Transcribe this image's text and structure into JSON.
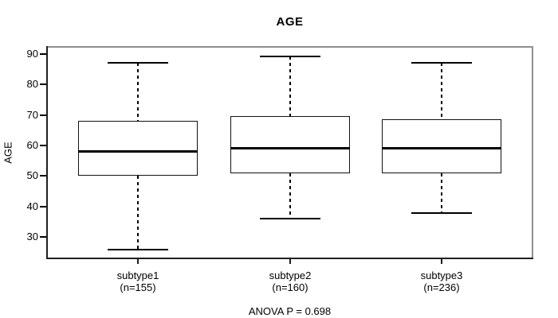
{
  "title": "AGE",
  "footer": "ANOVA P = 0.698",
  "colors": {
    "box_stroke": "#000000",
    "median": "#000000",
    "whisker": "#000000",
    "frame_gray": "#8f8f8f",
    "axis_black": "#1f1f1f",
    "text": "#000000",
    "background": "#ffffff"
  },
  "chart_data": {
    "type": "boxplot",
    "title": "AGE",
    "xlabel": "",
    "ylabel": "AGE",
    "yticks": [
      30,
      40,
      50,
      60,
      70,
      80,
      90
    ],
    "ylim": [
      22.8,
      92.5
    ],
    "grid": false,
    "legend": "none",
    "categories": [
      "subtype1",
      "subtype2",
      "subtype3"
    ],
    "category_sublabels": [
      "(n=155)",
      "(n=160)",
      "(n=236)"
    ],
    "series": [
      {
        "name": "subtype1",
        "n": 155,
        "whisker_low": 26,
        "q1": 50,
        "median": 58,
        "q3": 68,
        "whisker_high": 87
      },
      {
        "name": "subtype2",
        "n": 160,
        "whisker_low": 36,
        "q1": 51,
        "median": 59,
        "q3": 69.5,
        "whisker_high": 89
      },
      {
        "name": "subtype3",
        "n": 236,
        "whisker_low": 38,
        "q1": 51,
        "median": 59,
        "q3": 68.5,
        "whisker_high": 87
      }
    ],
    "annotation": "ANOVA P = 0.698"
  }
}
